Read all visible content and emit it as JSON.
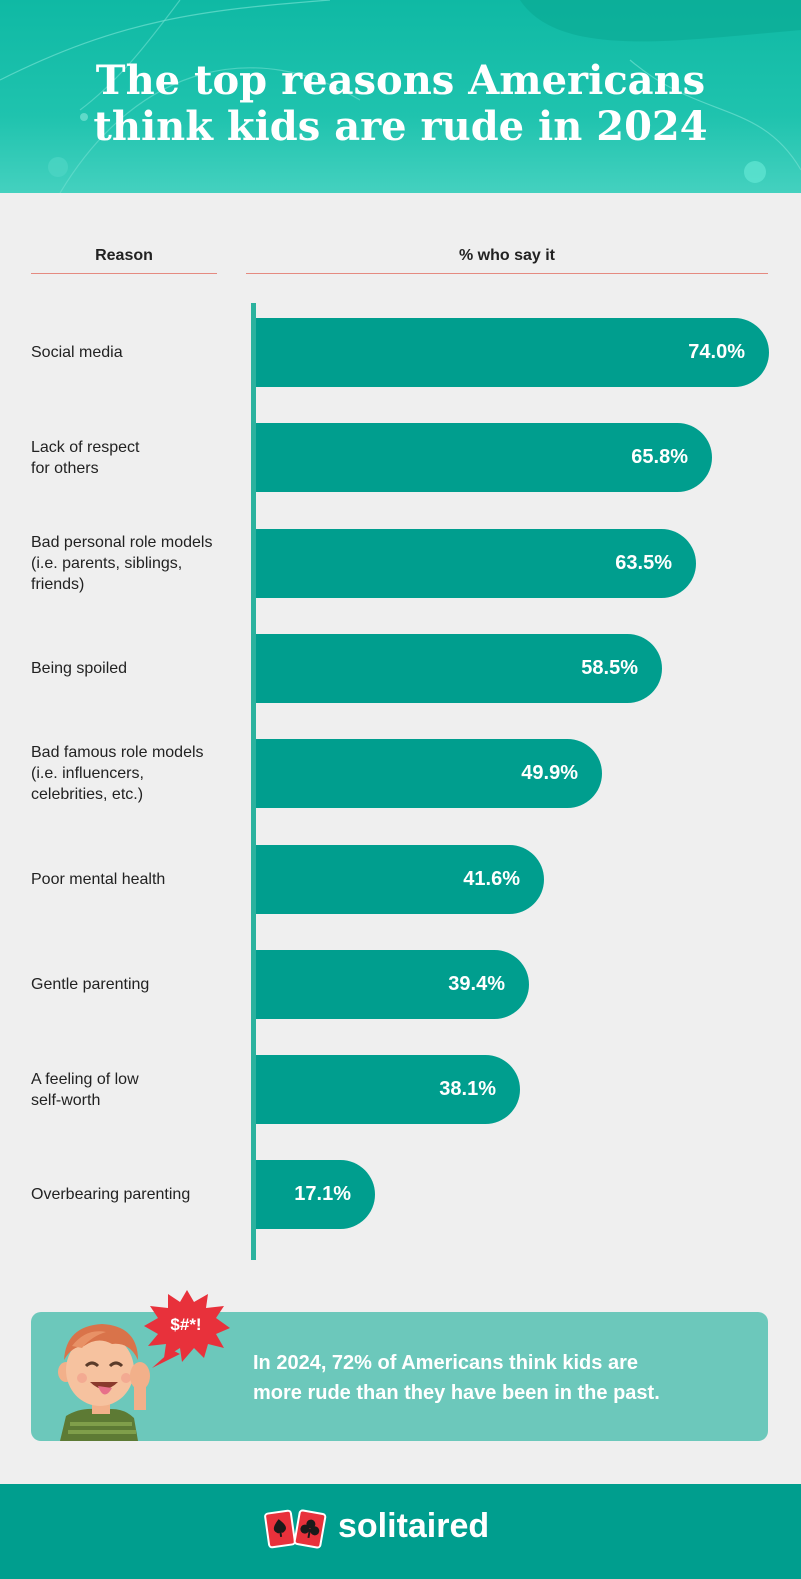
{
  "title": {
    "line1": "The top reasons Americans",
    "line2": "think kids are rude in 2024"
  },
  "columns": {
    "reason": "Reason",
    "percent": "% who say it"
  },
  "chart_data": {
    "type": "bar",
    "orientation": "horizontal",
    "categories": [
      "Social media",
      "Lack of respect for others",
      "Bad personal role models (i.e. parents, siblings, friends)",
      "Being spoiled",
      "Bad famous role models (i.e. influencers, celebrities, etc.)",
      "Poor mental health",
      "Gentle parenting",
      "A feeling of low self-worth",
      "Overbearing parenting"
    ],
    "category_lines": [
      [
        "Social media"
      ],
      [
        "Lack of respect",
        "for others"
      ],
      [
        "Bad personal role models",
        "(i.e. parents, siblings,",
        "friends)"
      ],
      [
        "Being spoiled"
      ],
      [
        "Bad famous role models",
        "(i.e. influencers,",
        "celebrities, etc.)"
      ],
      [
        "Poor mental health"
      ],
      [
        "Gentle parenting"
      ],
      [
        "A feeling of low",
        "self-worth"
      ],
      [
        "Overbearing parenting"
      ]
    ],
    "values": [
      74.0,
      65.8,
      63.5,
      58.5,
      49.9,
      41.6,
      39.4,
      38.1,
      17.1
    ],
    "value_labels": [
      "74.0%",
      "65.8%",
      "63.5%",
      "58.5%",
      "49.9%",
      "41.6%",
      "39.4%",
      "38.1%",
      "17.1%"
    ],
    "unit": "%",
    "bar_color": "#009e8e",
    "axis_color": "#2bb29e"
  },
  "callout": {
    "text_line1": "In 2024, 72% of Americans think kids are",
    "text_line2": "more rude than they have been in the past.",
    "speech": "$#*!"
  },
  "footer": {
    "brand": "solitaired"
  },
  "colors": {
    "header": "#1fc3ae",
    "background": "#efefef",
    "callout": "#6cc8bb",
    "footer": "#009e8e",
    "accent_red": "#e8313b",
    "rule": "#e58a80"
  }
}
